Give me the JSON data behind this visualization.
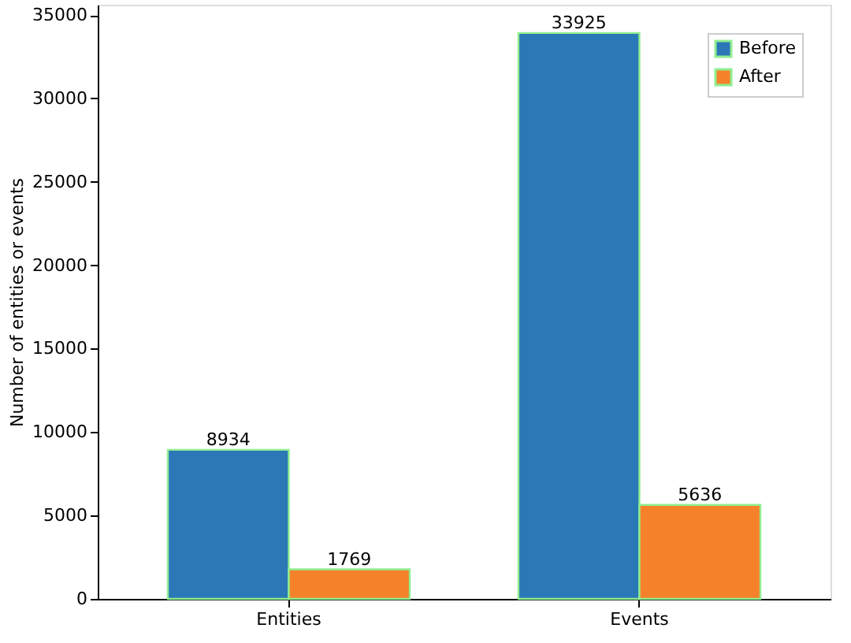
{
  "chart_data": {
    "type": "bar",
    "ylabel": "Number of entities or events",
    "categories": [
      "Entities",
      "Events"
    ],
    "series": [
      {
        "name": "Before",
        "color": "#2a78b6",
        "values": [
          8934,
          33925
        ]
      },
      {
        "name": "After",
        "color": "#f5822a",
        "values": [
          1769,
          5636
        ]
      }
    ],
    "ylim": [
      0,
      35621
    ],
    "yticks": [
      0,
      5000,
      10000,
      15000,
      20000,
      25000,
      30000,
      35000
    ],
    "data_labels": true,
    "legend": "top right",
    "grid": false
  }
}
